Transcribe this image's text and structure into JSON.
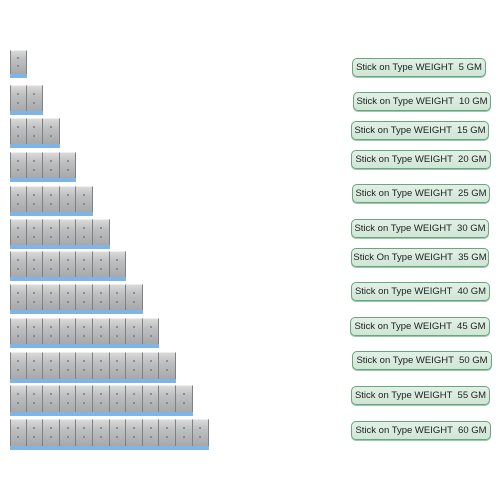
{
  "products": [
    {
      "label": "Stick on Type WEIGHT  5 GM",
      "blocks": 1
    },
    {
      "label": "Stick on Type WEIGHT  10 GM",
      "blocks": 2
    },
    {
      "label": "Stick on Type WEIGHT  15 GM",
      "blocks": 3
    },
    {
      "label": "Stick on Type WEIGHT  20 GM",
      "blocks": 4
    },
    {
      "label": "Stick on Type WEIGHT  25 GM",
      "blocks": 5
    },
    {
      "label": "Stick on Type WEIGHT  30 GM",
      "blocks": 6
    },
    {
      "label": "Stick On Type WEIGHT  35 GM",
      "blocks": 7
    },
    {
      "label": "Stick on Type WEIGHT  40 GM",
      "blocks": 8
    },
    {
      "label": "Stick on Type WEIGHT  45 GM",
      "blocks": 9
    },
    {
      "label": "Stick on Type WEIGHT  50 GM",
      "blocks": 10
    },
    {
      "label": "Stick on Type WEIGHT  55 GM",
      "blocks": 11
    },
    {
      "label": "Stick on Type WEIGHT  60 GM",
      "blocks": 12
    }
  ],
  "colors": {
    "label_fill": "#d6ead9",
    "label_border": "#6aa57f",
    "weight_metal": "#b7b8ba",
    "adhesive_tape": "#7fb5e6"
  }
}
